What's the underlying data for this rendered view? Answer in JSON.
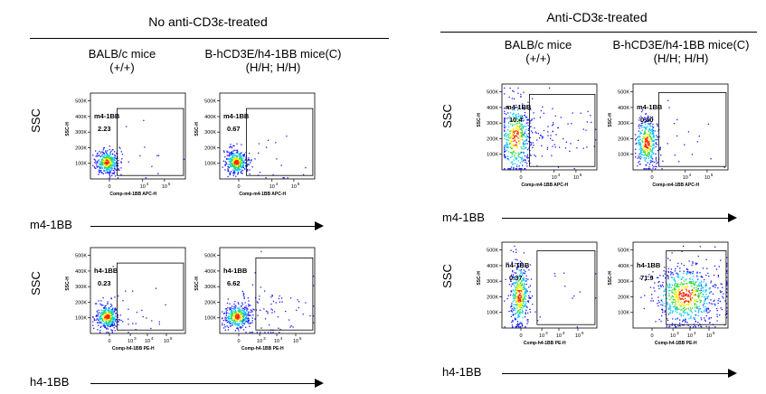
{
  "panels": [
    {
      "title": "No anti-CD3ε-treated",
      "columns": [
        {
          "line1": "BALB/c mice",
          "line2": "(+/+)"
        },
        {
          "line1": "B-hCD3E/h4-1BB mice(C)",
          "line2": "(H/H; H/H)"
        }
      ],
      "rows": [
        {
          "ylabel": "SSC",
          "marker_label": "m4-1BB"
        },
        {
          "ylabel": "SSC",
          "marker_label": "h4-1BB"
        }
      ]
    },
    {
      "title": "Anti-CD3ε-treated",
      "columns": [
        {
          "line1": "BALB/c mice",
          "line2": "(+/+)"
        },
        {
          "line1": "B-hCD3E/h4-1BB mice(C)",
          "line2": "(H/H; H/H)"
        }
      ],
      "rows": [
        {
          "ylabel": "SSC",
          "marker_label": "m4-1BB"
        },
        {
          "ylabel": "SSC",
          "marker_label": "h4-1BB"
        }
      ]
    }
  ],
  "chart_data": [
    {
      "type": "scatter",
      "panel": "No anti-CD3ε-treated",
      "sample": "BALB/c mice",
      "gate_label": "m4-1BB",
      "gate_percent": "2.23",
      "xlabel": "Comp-m4-1BB APC-H",
      "ylabel": "SSC-H",
      "x_ticks": [
        "0",
        "10",
        "10"
      ],
      "x_tick_exps": [
        "",
        "4",
        "5"
      ],
      "y_ticks": [
        "100K",
        "200K",
        "300K",
        "400K",
        "500K"
      ],
      "ylim": [
        0,
        550000
      ],
      "population": "compact-dense"
    },
    {
      "type": "scatter",
      "panel": "No anti-CD3ε-treated",
      "sample": "B-hCD3E/h4-1BB mice(C)",
      "gate_label": "m4-1BB",
      "gate_percent": "0.67",
      "xlabel": "Comp-m4-1BB APC-H",
      "ylabel": "SSC-H",
      "x_ticks": [
        "0",
        "10",
        "10"
      ],
      "x_tick_exps": [
        "",
        "4",
        "5"
      ],
      "y_ticks": [
        "100K",
        "200K",
        "300K",
        "400K",
        "500K"
      ],
      "ylim": [
        0,
        550000
      ],
      "population": "compact-dense"
    },
    {
      "type": "scatter",
      "panel": "No anti-CD3ε-treated",
      "sample": "BALB/c mice",
      "gate_label": "h4-1BB",
      "gate_percent": "0.23",
      "xlabel": "Comp-h4-1BB PE-H",
      "ylabel": "SSC-H",
      "x_ticks": [
        "0",
        "10",
        "10",
        "10"
      ],
      "x_tick_exps": [
        "",
        "3",
        "4",
        "5"
      ],
      "y_ticks": [
        "100K",
        "200K",
        "300K",
        "400K",
        "500K"
      ],
      "ylim": [
        0,
        550000
      ],
      "population": "compact-dense"
    },
    {
      "type": "scatter",
      "panel": "No anti-CD3ε-treated",
      "sample": "B-hCD3E/h4-1BB mice(C)",
      "gate_label": "h4-1BB",
      "gate_percent": "6.62",
      "xlabel": "Comp-h4-1BB PE-H",
      "ylabel": "SSC-H",
      "x_ticks": [
        "0",
        "10",
        "10",
        "10"
      ],
      "x_tick_exps": [
        "",
        "3",
        "4",
        "5"
      ],
      "y_ticks": [
        "100K",
        "200K",
        "300K",
        "400K",
        "500K"
      ],
      "ylim": [
        0,
        550000
      ],
      "population": "dense-with-tail"
    },
    {
      "type": "scatter",
      "panel": "Anti-CD3ε-treated",
      "sample": "BALB/c mice",
      "gate_label": "m4-1BB",
      "gate_percent": "10.4",
      "xlabel": "Comp-m4-1BB APC-H",
      "ylabel": "SSC-H",
      "x_ticks": [
        "0",
        "10",
        "10"
      ],
      "x_tick_exps": [
        "",
        "4",
        "5"
      ],
      "y_ticks": [
        "100K",
        "200K",
        "300K",
        "400K",
        "500K"
      ],
      "ylim": [
        0,
        550000
      ],
      "population": "tall-spread"
    },
    {
      "type": "scatter",
      "panel": "Anti-CD3ε-treated",
      "sample": "B-hCD3E/h4-1BB mice(C)",
      "gate_label": "m4-1BB",
      "gate_percent": "0.50",
      "xlabel": "Comp-m4-1BB APC-H",
      "ylabel": "SSC-H",
      "x_ticks": [
        "0",
        "10",
        "10"
      ],
      "x_tick_exps": [
        "",
        "4",
        "5"
      ],
      "y_ticks": [
        "100K",
        "200K",
        "300K",
        "400K",
        "500K"
      ],
      "ylim": [
        0,
        550000
      ],
      "population": "tall-compact"
    },
    {
      "type": "scatter",
      "panel": "Anti-CD3ε-treated",
      "sample": "BALB/c mice",
      "gate_label": "h4-1BB",
      "gate_percent": "0.37",
      "xlabel": "Comp-h4-1BB PE-H",
      "ylabel": "SSC-H",
      "x_ticks": [
        "0",
        "10",
        "10",
        "10"
      ],
      "x_tick_exps": [
        "",
        "3",
        "4",
        "5"
      ],
      "y_ticks": [
        "100K",
        "200K",
        "300K",
        "400K",
        "500K"
      ],
      "ylim": [
        0,
        550000
      ],
      "population": "tall-narrow"
    },
    {
      "type": "scatter",
      "panel": "Anti-CD3ε-treated",
      "sample": "B-hCD3E/h4-1BB mice(C)",
      "gate_label": "h4-1BB",
      "gate_percent": "71.9",
      "xlabel": "Comp-h4-1BB PE-H",
      "ylabel": "SSC-H",
      "x_ticks": [
        "0",
        "10",
        "10",
        "10"
      ],
      "x_tick_exps": [
        "",
        "3",
        "4",
        "5"
      ],
      "y_ticks": [
        "100K",
        "200K",
        "300K",
        "400K",
        "500K"
      ],
      "ylim": [
        0,
        550000
      ],
      "population": "shifted-broad"
    }
  ],
  "colors": {
    "density_low": "#1a1aff",
    "density_mid": "#00c8ff",
    "density_high1": "#33dd33",
    "density_high2": "#ffee00",
    "density_core": "#ff2200",
    "axis": "#000000"
  }
}
